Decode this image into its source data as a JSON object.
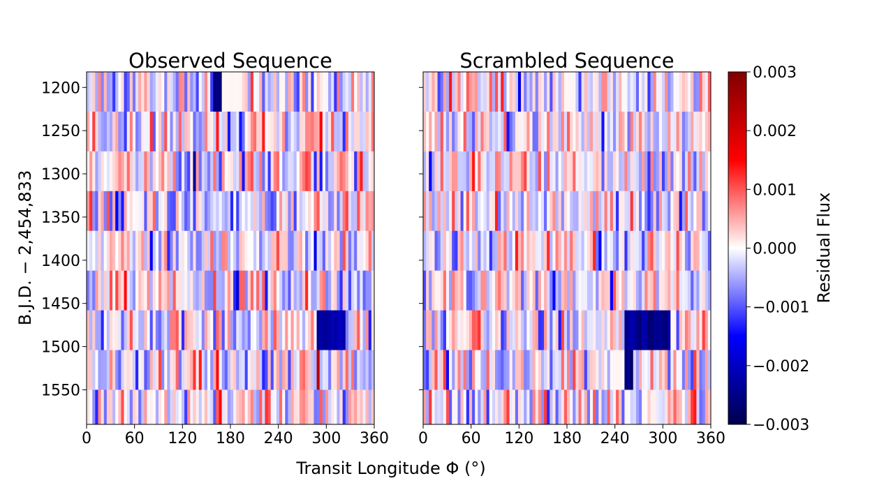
{
  "chart_data": {
    "type": "heatmap",
    "figure_xlabel": "Transit Longitude Φ (°)",
    "ylabel": "B.J.D. − 2,454,833",
    "ylim": [
      1590,
      1182
    ],
    "row_edges": [
      1182,
      1228,
      1274,
      1320,
      1366,
      1412,
      1458,
      1504,
      1550,
      1590
    ],
    "yticks": [
      1200,
      1250,
      1300,
      1350,
      1400,
      1450,
      1500,
      1550
    ],
    "ytick_labels": [
      "1200",
      "1250",
      "1300",
      "1350",
      "1400",
      "1450",
      "1500",
      "1550"
    ],
    "xlim": [
      0,
      360
    ],
    "xticks": [
      0,
      60,
      120,
      180,
      240,
      300,
      360
    ],
    "xtick_labels": [
      "0",
      "60",
      "120",
      "180",
      "240",
      "300",
      "360"
    ],
    "n_longitude_bins": 100,
    "colorbar": {
      "label": "Residual Flux",
      "range": [
        -0.003,
        0.003
      ],
      "ticks": [
        0.003,
        0.002,
        0.001,
        0.0,
        -0.001,
        -0.002,
        -0.003
      ],
      "tick_labels": [
        "0.003",
        "0.002",
        "0.001",
        "0.000",
        "−0.001",
        "−0.002",
        "−0.003"
      ],
      "colormap": "seismic"
    },
    "panels": [
      {
        "title": "Observed Sequence",
        "seed": 1337,
        "features": [
          {
            "row": 0,
            "from": 169,
            "to": 194,
            "value": 5e-05,
            "note": "near-zero gray patch"
          },
          {
            "row": 0,
            "from": 160,
            "to": 168,
            "value": -0.0025
          },
          {
            "row": 6,
            "from": 288,
            "to": 325,
            "value": -0.0022
          }
        ]
      },
      {
        "title": "Scrambled Sequence",
        "seed": 4242,
        "features": [
          {
            "row": 0,
            "from": 177,
            "to": 192,
            "value": 5e-05,
            "note": "near-zero gray patch"
          },
          {
            "row": 6,
            "from": 252,
            "to": 310,
            "value": -0.0024
          },
          {
            "row": 7,
            "from": 233,
            "to": 252,
            "value": 5e-05,
            "note": "near-zero gray patch"
          },
          {
            "row": 7,
            "from": 252,
            "to": 262,
            "value": -0.0026
          }
        ]
      }
    ]
  }
}
